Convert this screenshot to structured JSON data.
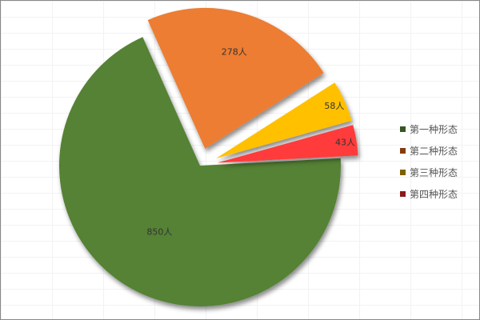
{
  "chart_data": {
    "type": "pie",
    "categories": [
      "第一种形态",
      "第二种形态",
      "第三种形态",
      "第四种形态"
    ],
    "values": [
      850,
      278,
      58,
      43
    ],
    "data_labels": [
      "850人",
      "278人",
      "58人",
      "43人"
    ],
    "colors": [
      "#548235",
      "#ED7D31",
      "#FFC000",
      "#FF3B3B"
    ],
    "legend_colors": [
      "#375623",
      "#843C0C",
      "#7F6000",
      "#8B1A1A"
    ],
    "exploded": [
      false,
      true,
      true,
      true
    ],
    "legend_position": "right",
    "grid": true
  }
}
